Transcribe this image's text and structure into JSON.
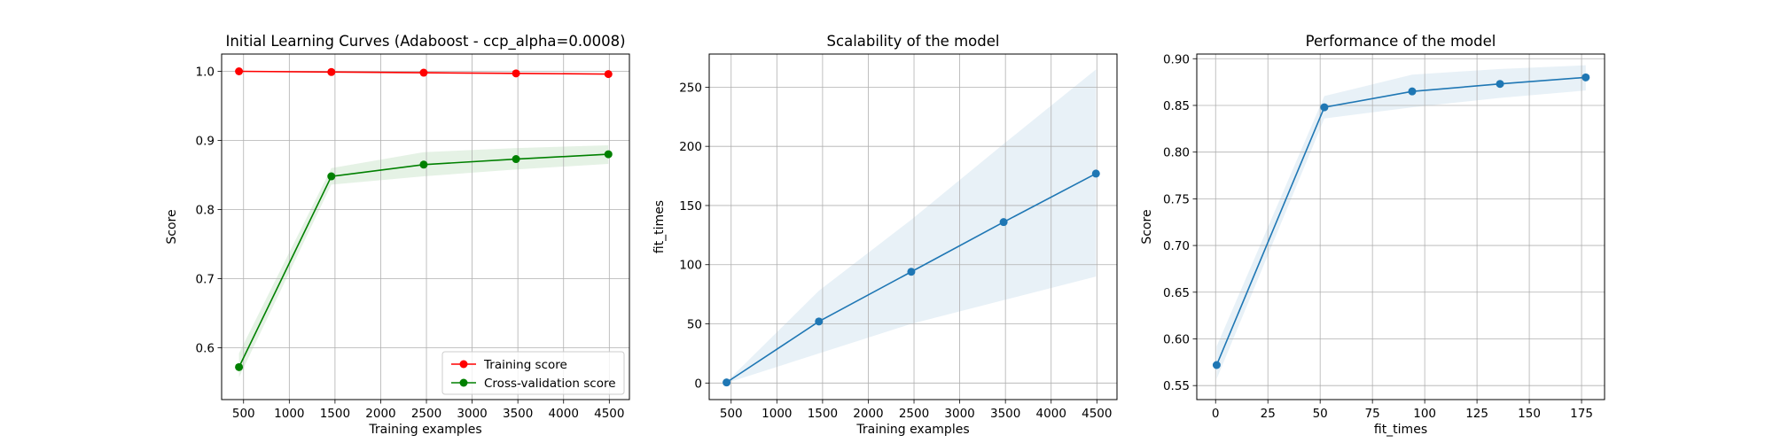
{
  "chart_data": [
    {
      "type": "line",
      "title": "Initial Learning Curves (Adaboost - ccp_alpha=0.0008)",
      "xlabel": "Training examples",
      "ylabel": "Score",
      "xlim": [
        260,
        4720
      ],
      "ylim": [
        0.525,
        1.025
      ],
      "xticks": [
        500,
        1000,
        1500,
        2000,
        2500,
        3000,
        3500,
        4000,
        4500
      ],
      "yticks": [
        0.6,
        0.7,
        0.8,
        0.9,
        1.0
      ],
      "ytick_decimals": 1,
      "grid": true,
      "legend": "lower-right",
      "series": [
        {
          "name": "Training score",
          "color": "#ff0000",
          "x": [
            450,
            1460,
            2470,
            3480,
            4490
          ],
          "y": [
            1.0,
            0.999,
            0.998,
            0.997,
            0.996
          ],
          "band_low": [
            0.999,
            0.998,
            0.997,
            0.996,
            0.995
          ],
          "band_high": [
            1.0,
            1.0,
            0.999,
            0.998,
            0.997
          ]
        },
        {
          "name": "Cross-validation score",
          "color": "#008000",
          "x": [
            450,
            1460,
            2470,
            3480,
            4490
          ],
          "y": [
            0.572,
            0.848,
            0.865,
            0.873,
            0.88
          ],
          "band_low": [
            0.557,
            0.836,
            0.848,
            0.858,
            0.866
          ],
          "band_high": [
            0.592,
            0.86,
            0.883,
            0.889,
            0.893
          ]
        }
      ]
    },
    {
      "type": "line",
      "title": "Scalability of the model",
      "xlabel": "Training examples",
      "ylabel": "fit_times",
      "xlim": [
        260,
        4720
      ],
      "ylim": [
        -14,
        278
      ],
      "xticks": [
        500,
        1000,
        1500,
        2000,
        2500,
        3000,
        3500,
        4000,
        4500
      ],
      "yticks": [
        0,
        50,
        100,
        150,
        200,
        250
      ],
      "ytick_decimals": 0,
      "grid": true,
      "series": [
        {
          "color": "#1f77b4",
          "x": [
            450,
            1460,
            2470,
            3480,
            4490
          ],
          "y": [
            0.5,
            52,
            94,
            136,
            177
          ],
          "band_low": [
            0,
            25,
            50,
            70,
            90
          ],
          "band_high": [
            1,
            78,
            138,
            202,
            265
          ]
        }
      ]
    },
    {
      "type": "line",
      "title": "Performance of the model",
      "xlabel": "fit_times",
      "ylabel": "Score",
      "xlim": [
        -9,
        186
      ],
      "ylim": [
        0.535,
        0.905
      ],
      "xticks": [
        0,
        25,
        50,
        75,
        100,
        125,
        150,
        175
      ],
      "yticks": [
        0.55,
        0.6,
        0.65,
        0.7,
        0.75,
        0.8,
        0.85,
        0.9
      ],
      "ytick_decimals": 2,
      "grid": true,
      "series": [
        {
          "color": "#1f77b4",
          "x": [
            0.5,
            52,
            94,
            136,
            177
          ],
          "y": [
            0.572,
            0.848,
            0.865,
            0.873,
            0.88
          ],
          "band_low": [
            0.557,
            0.836,
            0.848,
            0.858,
            0.866
          ],
          "band_high": [
            0.592,
            0.86,
            0.883,
            0.889,
            0.893
          ]
        }
      ]
    }
  ]
}
